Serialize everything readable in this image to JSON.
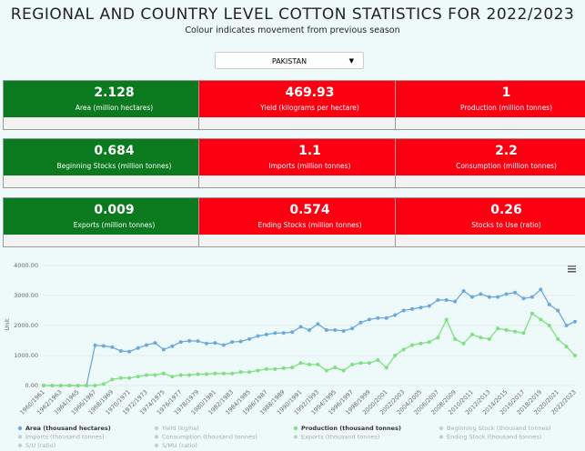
{
  "header": {
    "title": "REGIONAL AND COUNTRY LEVEL COTTON STATISTICS FOR 2022/2023",
    "subtitle": "Colour indicates movement from previous season"
  },
  "dropdown": {
    "selected": "PAKISTAN"
  },
  "cards": [
    {
      "value": "2.128",
      "label": "Area (million hectares)",
      "color": "#0b7a1f"
    },
    {
      "value": "469.93",
      "label": "Yield (kilograms per hectare)",
      "color": "#fb0011"
    },
    {
      "value": "1",
      "label": "Production (million tonnes)",
      "color": "#fb0011"
    },
    {
      "value": "0.684",
      "label": "Beginning Stocks (million tonnes)",
      "color": "#0b7a1f"
    },
    {
      "value": "1.1",
      "label": "Imports (million tonnes)",
      "color": "#fb0011"
    },
    {
      "value": "2.2",
      "label": "Consumption (million tonnes)",
      "color": "#fb0011"
    },
    {
      "value": "0.009",
      "label": "Exports (million tonnes)",
      "color": "#0b7a1f"
    },
    {
      "value": "0.574",
      "label": "Ending Stocks (million tonnes)",
      "color": "#fb0011"
    },
    {
      "value": "0.26",
      "label": "Stocks to Use (ratio)",
      "color": "#fb0011"
    }
  ],
  "chart_data": {
    "type": "line",
    "y_label": "Unit",
    "categories": [
      "1960/1961",
      null,
      "1962/1963",
      null,
      "1964/1965",
      null,
      "1966/1967",
      null,
      "1968/1969",
      null,
      "1970/1971",
      null,
      "1972/1973",
      null,
      "1974/1975",
      null,
      "1976/1977",
      null,
      "1978/1979",
      null,
      "1980/1981",
      null,
      "1982/1983",
      null,
      "1984/1985",
      null,
      "1986/1987",
      null,
      "1988/1989",
      null,
      "1990/1991",
      null,
      "1992/1993",
      null,
      "1994/1995",
      null,
      "1996/1997",
      null,
      "1998/1999",
      null,
      "2000/2001",
      null,
      "2002/2003",
      null,
      "2004/2005",
      null,
      "2006/2007",
      null,
      "2008/2009",
      null,
      "2010/2011",
      null,
      "2012/2013",
      null,
      "2014/2015",
      null,
      "2016/2017",
      null,
      "2018/2019",
      null,
      "2020/2021",
      null,
      "2022/2023"
    ],
    "ylim": [
      0,
      4000
    ],
    "yticks": [
      {
        "value": 0,
        "label": "0.00"
      },
      {
        "value": 1000,
        "label": "1000.00"
      },
      {
        "value": 2000,
        "label": "2000.00"
      },
      {
        "value": 3000,
        "label": "3000.00"
      },
      {
        "value": 4000,
        "label": "4000.00"
      }
    ],
    "series": [
      {
        "name": "Area (thousand hectares)",
        "color": "#6fa8dc",
        "visible": true,
        "values": [
          0,
          0,
          0,
          0,
          0,
          0,
          1340,
          1320,
          1280,
          1150,
          1130,
          1250,
          1350,
          1420,
          1200,
          1310,
          1450,
          1490,
          1480,
          1400,
          1420,
          1350,
          1450,
          1470,
          1550,
          1650,
          1700,
          1750,
          1750,
          1780,
          1960,
          1850,
          2050,
          1850,
          1850,
          1820,
          1900,
          2100,
          2200,
          2250,
          2250,
          2350,
          2500,
          2550,
          2600,
          2650,
          2850,
          2850,
          2800,
          3150,
          2950,
          3050,
          2950,
          2950,
          3050,
          3100,
          2900,
          2950,
          3200,
          2700,
          2500,
          2000,
          2128
        ]
      },
      {
        "name": "Yield (kg/ha)",
        "color": "#aaaaaa",
        "visible": false
      },
      {
        "name": "Production (thousand tonnes)",
        "color": "#7ee07e",
        "visible": true,
        "values": [
          0,
          0,
          0,
          0,
          0,
          0,
          0,
          50,
          200,
          250,
          250,
          300,
          350,
          350,
          400,
          300,
          350,
          350,
          380,
          380,
          400,
          400,
          400,
          450,
          450,
          500,
          550,
          550,
          580,
          600,
          750,
          700,
          700,
          500,
          600,
          500,
          700,
          750,
          750,
          850,
          600,
          1000,
          1200,
          1350,
          1400,
          1450,
          1600,
          2200,
          1550,
          1400,
          1700,
          1600,
          1550,
          1900,
          1850,
          1800,
          1750,
          2400,
          2200,
          2000,
          1550,
          1300,
          1000
        ]
      },
      {
        "name": "Beginning Stock (thousand tonnes)",
        "color": "#aaaaaa",
        "visible": false
      },
      {
        "name": "Imports (thousand tonnes)",
        "color": "#aaaaaa",
        "visible": false
      },
      {
        "name": "Consumption (thousand tonnes)",
        "color": "#aaaaaa",
        "visible": false
      },
      {
        "name": "Exports (thousand tonnes)",
        "color": "#aaaaaa",
        "visible": false
      },
      {
        "name": "Ending Stock (thousand tonnes)",
        "color": "#aaaaaa",
        "visible": false
      },
      {
        "name": "S/U (ratio)",
        "color": "#aaaaaa",
        "visible": false
      },
      {
        "name": "S/MU (ratio)",
        "color": "#aaaaaa",
        "visible": false
      }
    ]
  }
}
